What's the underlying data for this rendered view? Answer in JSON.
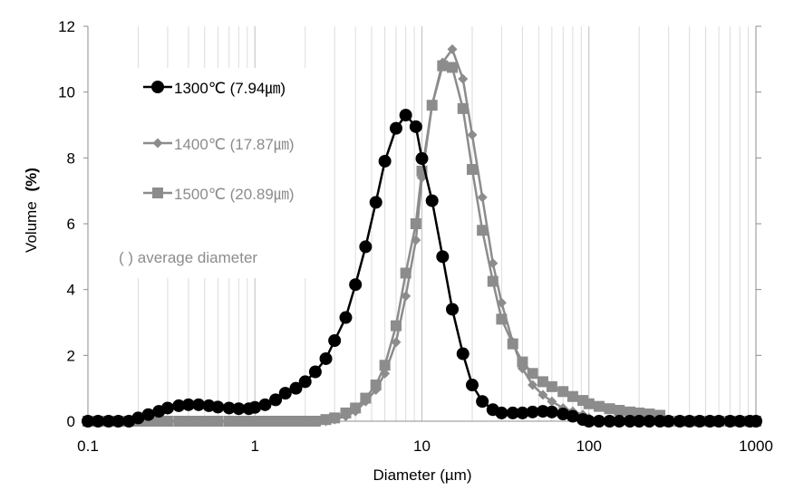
{
  "chart_data": {
    "type": "line",
    "xlabel": "Diameter (µm)",
    "ylabel_main": "Volume",
    "ylabel_unit": "(%)",
    "x_scale": "log",
    "xlim": [
      0.1,
      1000
    ],
    "ylim": [
      0,
      12
    ],
    "x_ticks": [
      0.1,
      1,
      10,
      100,
      1000
    ],
    "x_tick_labels": [
      "0.1",
      "1",
      "10",
      "100",
      "1000"
    ],
    "y_ticks": [
      0,
      2,
      4,
      6,
      8,
      10,
      12
    ],
    "y_tick_labels": [
      "0",
      "2",
      "4",
      "6",
      "8",
      "10",
      "12"
    ],
    "grid": "vertical minor and major lines on log x-axis",
    "legend_position": "upper-left",
    "legend_note": "(  ) average diameter",
    "series": [
      {
        "name": "1300℃ (7.94㎛)",
        "color": "#000000",
        "marker": "circle",
        "x": [
          0.1,
          0.115,
          0.133,
          0.152,
          0.176,
          0.2,
          0.23,
          0.266,
          0.3,
          0.35,
          0.4,
          0.46,
          0.53,
          0.6,
          0.7,
          0.8,
          0.92,
          1.0,
          1.15,
          1.33,
          1.52,
          1.76,
          2.0,
          2.3,
          2.66,
          3.0,
          3.5,
          4.0,
          4.6,
          5.3,
          6.0,
          7.0,
          8.0,
          9.2,
          10.0,
          11.5,
          13.3,
          15.2,
          17.6,
          20.0,
          23.0,
          26.6,
          30.0,
          35.0,
          40.0,
          46.0,
          53.0,
          60.0,
          70.0,
          80.0,
          92.0,
          100.0,
          115.0,
          133.0,
          152.0,
          176.0,
          200.0,
          230.0,
          266.0,
          300.0,
          350.0,
          400.0,
          460.0,
          530.0,
          600.0,
          700.0,
          800.0,
          920.0,
          1000.0
        ],
        "y": [
          0,
          0,
          0,
          0,
          0,
          0.1,
          0.2,
          0.3,
          0.4,
          0.47,
          0.5,
          0.5,
          0.47,
          0.43,
          0.4,
          0.38,
          0.38,
          0.42,
          0.5,
          0.65,
          0.85,
          1.0,
          1.2,
          1.5,
          1.9,
          2.45,
          3.15,
          4.15,
          5.3,
          6.65,
          7.9,
          8.9,
          9.3,
          8.95,
          7.98,
          6.7,
          5.0,
          3.4,
          2.05,
          1.1,
          0.6,
          0.35,
          0.25,
          0.25,
          0.25,
          0.28,
          0.3,
          0.28,
          0.22,
          0.15,
          0.05,
          0,
          0,
          0,
          0,
          0,
          0,
          0,
          0,
          0,
          0,
          0,
          0,
          0,
          0,
          0,
          0,
          0,
          0
        ]
      },
      {
        "name": "1400℃ (17.87㎛)",
        "color": "#8c8c8c",
        "marker": "diamond",
        "x": [
          0.1,
          0.115,
          0.133,
          0.152,
          0.176,
          0.2,
          0.23,
          0.266,
          0.3,
          0.35,
          0.4,
          0.46,
          0.53,
          0.6,
          0.7,
          0.8,
          0.92,
          1.0,
          1.15,
          1.33,
          1.52,
          1.76,
          2.0,
          2.3,
          2.66,
          3.0,
          3.5,
          4.0,
          4.6,
          5.3,
          6.0,
          7.0,
          8.0,
          9.2,
          10.0,
          11.5,
          13.3,
          15.2,
          17.6,
          20.0,
          23.0,
          26.6,
          30.0,
          35.0,
          40.0,
          46.0,
          53.0,
          60.0,
          70.0,
          80.0,
          92.0,
          100.0,
          115.0,
          133.0,
          152.0,
          176.0,
          200.0,
          230.0,
          266.0,
          300.0,
          350.0,
          400.0,
          460.0,
          530.0,
          600.0,
          700.0,
          800.0,
          920.0,
          1000.0
        ],
        "y": [
          0,
          0,
          0,
          0,
          0,
          0,
          0,
          0,
          0,
          0,
          0,
          0,
          0,
          0,
          0,
          0,
          0,
          0,
          0,
          0,
          0,
          0,
          0,
          0,
          0,
          0.05,
          0.15,
          0.3,
          0.6,
          0.95,
          1.45,
          2.4,
          3.8,
          5.5,
          7.4,
          9.6,
          10.9,
          11.3,
          10.4,
          8.7,
          6.8,
          4.8,
          3.6,
          2.4,
          1.6,
          1.1,
          0.8,
          0.6,
          0.4,
          0.3,
          0.2,
          0.1,
          0.05,
          0.03,
          0.01,
          0,
          0,
          0,
          0,
          0,
          0,
          0,
          0,
          0,
          0,
          0,
          0,
          0,
          0
        ]
      },
      {
        "name": "1500℃ (20.89㎛)",
        "color": "#8c8c8c",
        "marker": "square",
        "x": [
          0.1,
          0.115,
          0.133,
          0.152,
          0.176,
          0.2,
          0.23,
          0.266,
          0.3,
          0.35,
          0.4,
          0.46,
          0.53,
          0.6,
          0.7,
          0.8,
          0.92,
          1.0,
          1.15,
          1.33,
          1.52,
          1.76,
          2.0,
          2.3,
          2.66,
          3.0,
          3.5,
          4.0,
          4.6,
          5.3,
          6.0,
          7.0,
          8.0,
          9.2,
          10.0,
          11.5,
          13.3,
          15.2,
          17.6,
          20.0,
          23.0,
          26.6,
          30.0,
          35.0,
          40.0,
          46.0,
          53.0,
          60.0,
          70.0,
          80.0,
          92.0,
          100.0,
          115.0,
          133.0,
          152.0,
          176.0,
          200.0,
          230.0,
          266.0,
          300.0,
          350.0,
          400.0,
          460.0,
          530.0,
          600.0,
          700.0,
          800.0,
          920.0,
          1000.0
        ],
        "y": [
          0,
          0,
          0,
          0,
          0,
          0,
          0,
          0,
          0,
          0,
          0,
          0,
          0,
          0,
          0,
          0,
          0,
          0,
          0,
          0,
          0,
          0,
          0,
          0,
          0.05,
          0.1,
          0.25,
          0.4,
          0.7,
          1.1,
          1.7,
          2.9,
          4.5,
          6.0,
          7.6,
          9.6,
          10.8,
          10.75,
          9.5,
          7.65,
          5.8,
          4.25,
          3.1,
          2.35,
          1.8,
          1.45,
          1.2,
          1.05,
          0.9,
          0.75,
          0.63,
          0.53,
          0.45,
          0.38,
          0.33,
          0.28,
          0.25,
          0.22,
          0.18,
          0,
          0,
          0,
          0,
          0,
          0,
          0,
          0,
          0,
          0
        ]
      }
    ]
  }
}
